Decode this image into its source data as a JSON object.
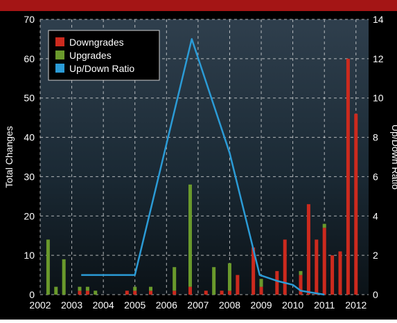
{
  "chart_data": {
    "type": "bar",
    "title": "",
    "ylabel": "Total Changes",
    "y2label": "Up/Down Ratio",
    "xlabel": "",
    "ylim": [
      0,
      70
    ],
    "y2lim": [
      0,
      14
    ],
    "xlim": [
      2002,
      2012.4
    ],
    "yticks": [
      0,
      10,
      20,
      30,
      40,
      50,
      60,
      70
    ],
    "y2ticks": [
      0,
      2,
      4,
      6,
      8,
      10,
      12,
      14
    ],
    "xticks": [
      "2002",
      "2003",
      "2004",
      "2005",
      "2006",
      "2007",
      "2008",
      "2009",
      "2010",
      "2011",
      "2012"
    ],
    "grid": true,
    "legend_position": "top-left",
    "series": [
      {
        "name": "Downgrades",
        "kind": "bar",
        "color": "#cc2a1e",
        "points": [
          [
            2002.25,
            0
          ],
          [
            2002.5,
            0
          ],
          [
            2002.75,
            0
          ],
          [
            2003.25,
            1
          ],
          [
            2003.5,
            1
          ],
          [
            2003.75,
            0
          ],
          [
            2004.75,
            1
          ],
          [
            2005.0,
            1
          ],
          [
            2005.5,
            1
          ],
          [
            2006.25,
            1
          ],
          [
            2006.75,
            2
          ],
          [
            2007.25,
            1
          ],
          [
            2007.5,
            0
          ],
          [
            2007.75,
            1
          ],
          [
            2008.0,
            1
          ],
          [
            2008.25,
            5
          ],
          [
            2008.75,
            12
          ],
          [
            2009.0,
            2
          ],
          [
            2009.5,
            6
          ],
          [
            2009.75,
            14
          ],
          [
            2010.25,
            5
          ],
          [
            2010.5,
            23
          ],
          [
            2010.75,
            14
          ],
          [
            2011.0,
            17
          ],
          [
            2011.25,
            10
          ],
          [
            2011.5,
            11
          ],
          [
            2011.75,
            60
          ],
          [
            2012.0,
            46
          ]
        ]
      },
      {
        "name": "Upgrades",
        "kind": "bar",
        "color": "#6a9a2c",
        "points": [
          [
            2002.25,
            14
          ],
          [
            2002.5,
            2
          ],
          [
            2002.75,
            9
          ],
          [
            2003.25,
            1
          ],
          [
            2003.5,
            1
          ],
          [
            2003.75,
            1
          ],
          [
            2004.75,
            0
          ],
          [
            2005.0,
            1
          ],
          [
            2005.5,
            1
          ],
          [
            2006.25,
            6
          ],
          [
            2006.75,
            26
          ],
          [
            2007.25,
            0
          ],
          [
            2007.5,
            7
          ],
          [
            2007.75,
            0
          ],
          [
            2008.0,
            7
          ],
          [
            2008.25,
            0
          ],
          [
            2008.75,
            0
          ],
          [
            2009.0,
            2
          ],
          [
            2009.5,
            0
          ],
          [
            2009.75,
            0
          ],
          [
            2010.25,
            1
          ],
          [
            2010.5,
            0
          ],
          [
            2010.75,
            0
          ],
          [
            2011.0,
            1
          ],
          [
            2011.25,
            0
          ],
          [
            2011.5,
            0
          ],
          [
            2011.75,
            0
          ],
          [
            2012.0,
            0
          ]
        ]
      },
      {
        "name": "Up/Down Ratio",
        "kind": "line",
        "axis": "right",
        "color": "#2b9bd6",
        "points": [
          [
            2003.3,
            1.0
          ],
          [
            2005.0,
            1.0
          ],
          [
            2006.8,
            13.0
          ],
          [
            2008.0,
            7.2
          ],
          [
            2008.95,
            1.0
          ],
          [
            2009.5,
            0.7
          ],
          [
            2010.0,
            0.5
          ],
          [
            2010.25,
            0.2
          ],
          [
            2011.0,
            0.0
          ]
        ]
      }
    ]
  }
}
